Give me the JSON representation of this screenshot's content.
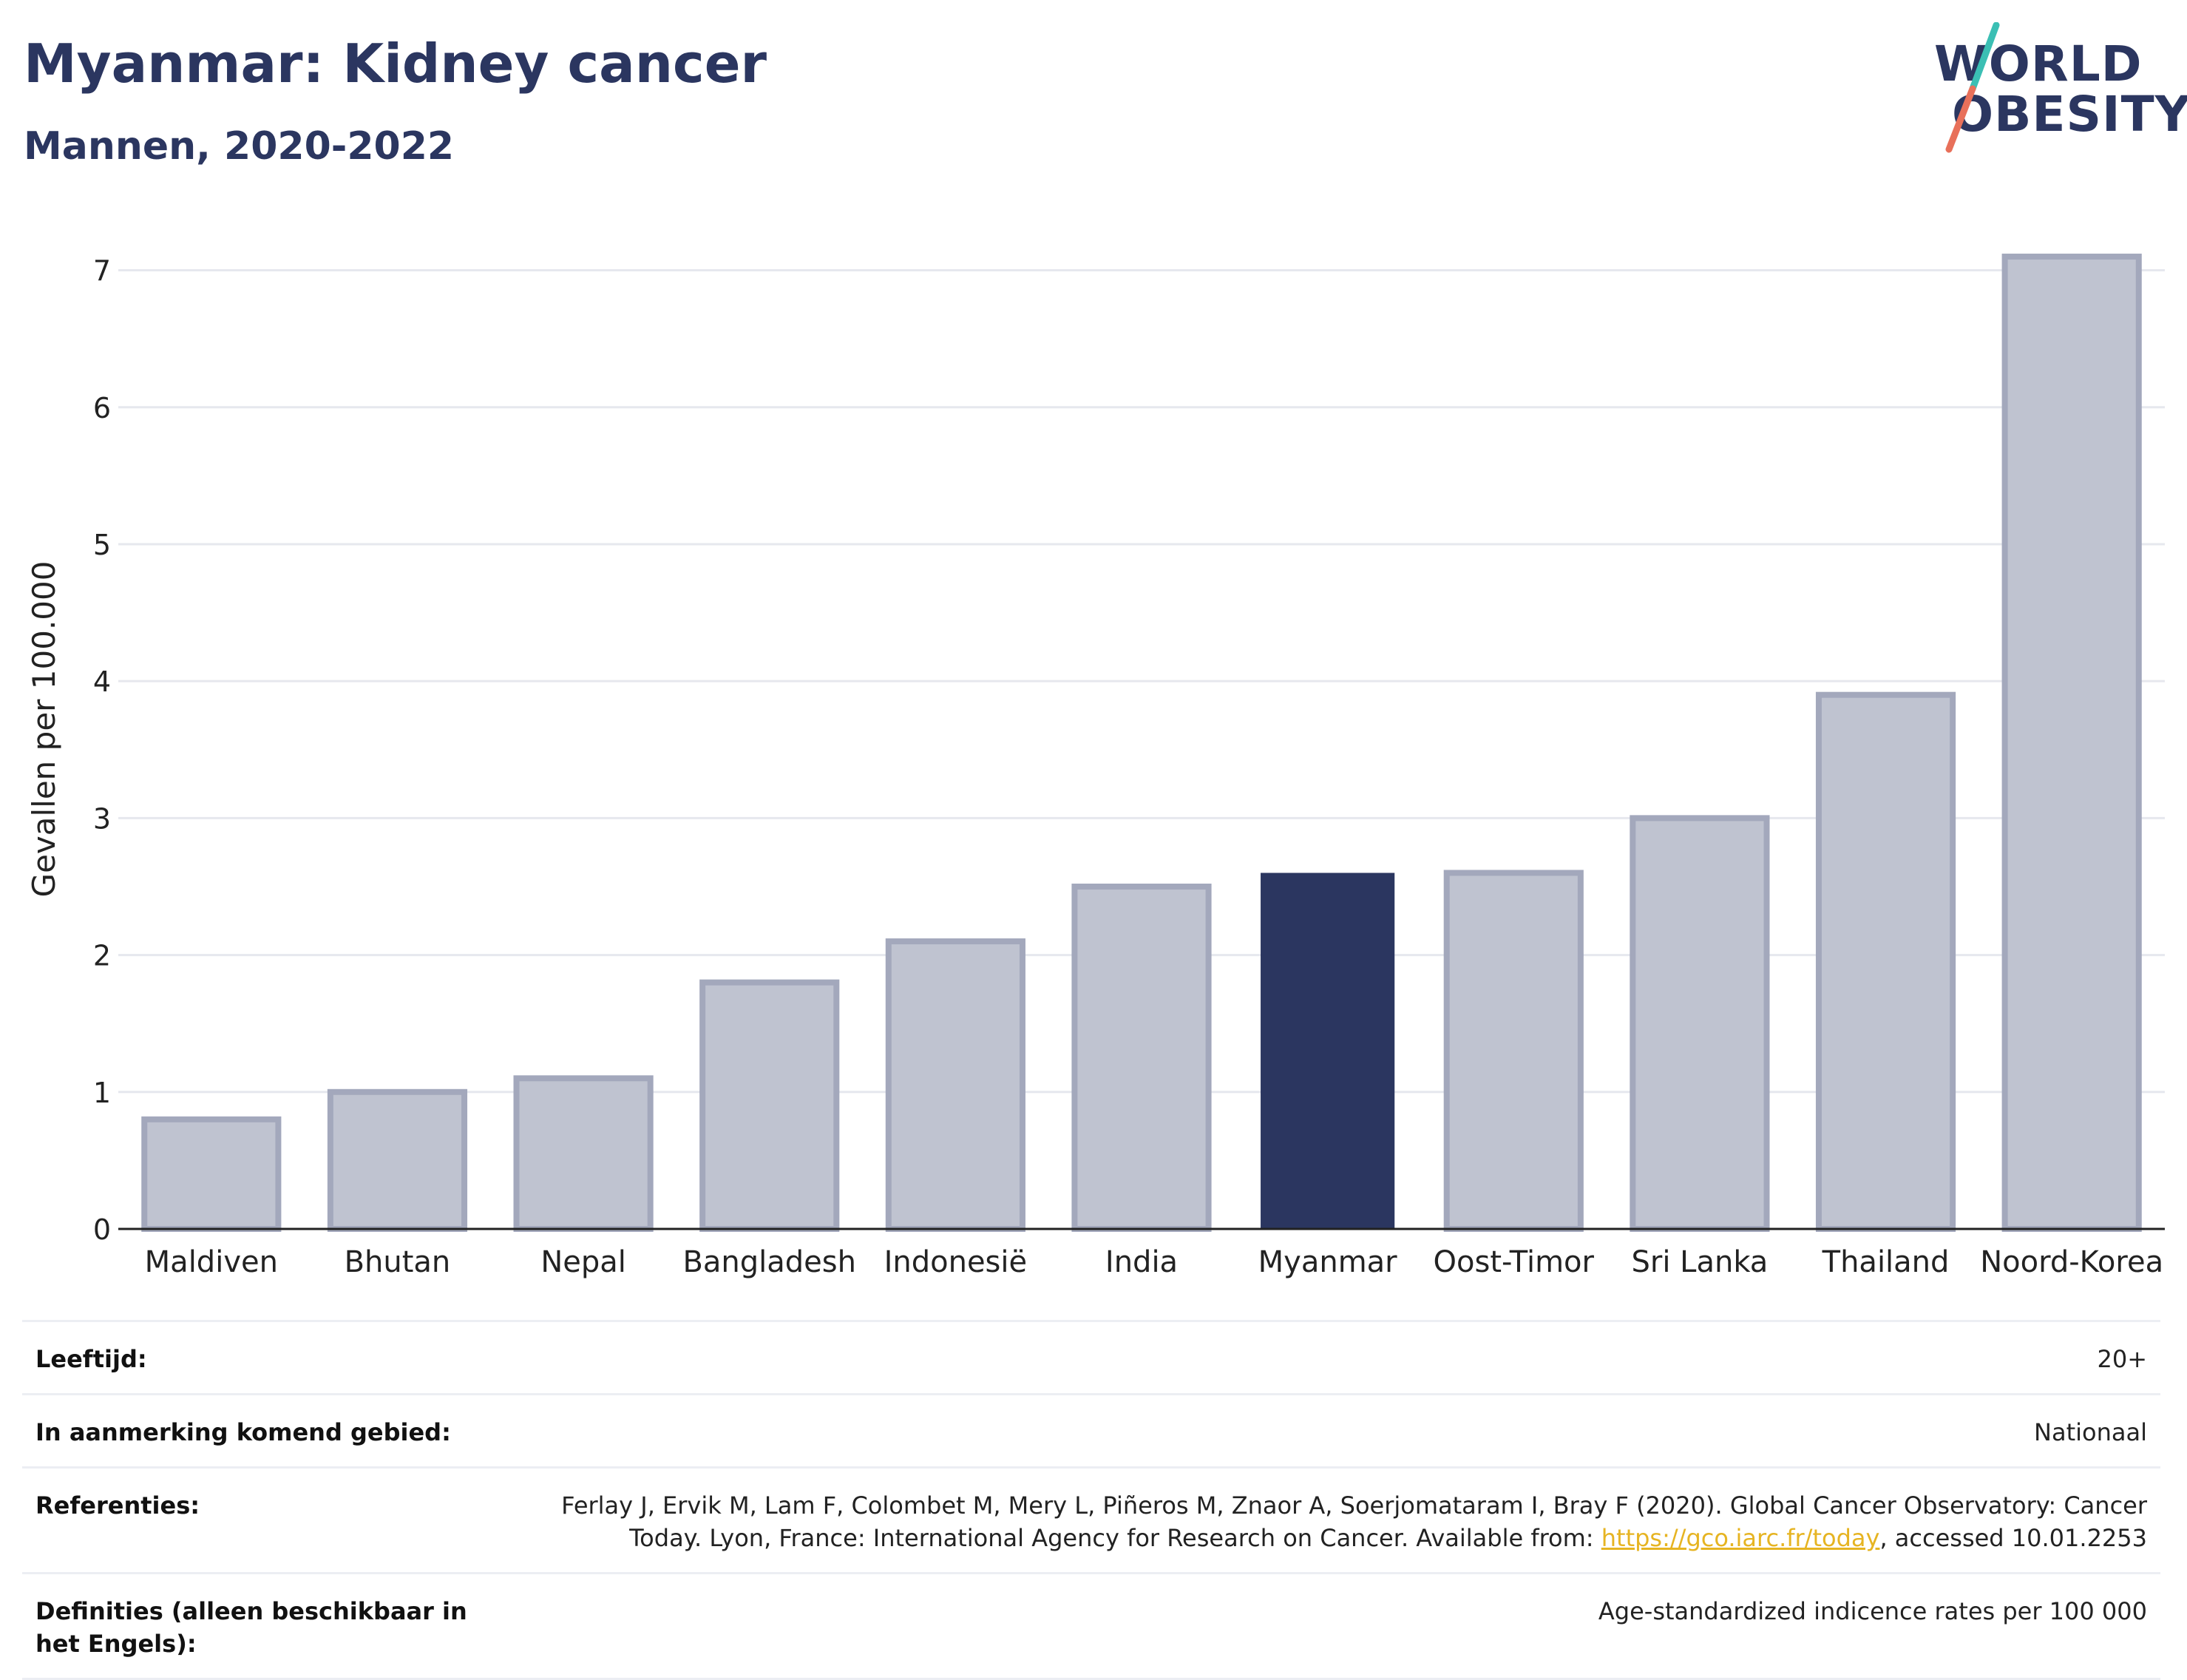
{
  "header": {
    "title": "Myanmar: Kidney cancer",
    "subtitle": "Mannen, 2020-2022"
  },
  "logo": {
    "line1": "WORLD",
    "line2": "OBESITY",
    "colors": {
      "text": "#2b3660",
      "slash_top": "#3bbfb4",
      "slash_bottom": "#e8705a"
    }
  },
  "chart_data": {
    "type": "bar",
    "categories": [
      "Maldiven",
      "Bhutan",
      "Nepal",
      "Bangladesh",
      "Indonesië",
      "India",
      "Myanmar",
      "Oost-Timor",
      "Sri Lanka",
      "Thailand",
      "Noord-Korea"
    ],
    "values": [
      0.8,
      1.0,
      1.1,
      1.8,
      2.1,
      2.5,
      2.6,
      2.6,
      3.0,
      3.9,
      7.1
    ],
    "highlight": "Myanmar",
    "ylabel": "Gevallen per 100.000",
    "yticks": [
      0,
      1,
      2,
      3,
      4,
      5,
      6,
      7
    ],
    "ylim": [
      0,
      7.3
    ],
    "grid": true,
    "colors": {
      "bar": "#bfc3d0",
      "bar_border": "#a3a8bc",
      "highlight": "#2b3660",
      "grid": "#e6e8ee",
      "axis": "#222222"
    }
  },
  "meta": [
    {
      "label": "Leeftijd:",
      "value": "20+"
    },
    {
      "label": "In aanmerking komend gebied:",
      "value": "Nationaal"
    },
    {
      "label": "Referenties:",
      "value_pre": "Ferlay J, Ervik M, Lam F, Colombet M, Mery L, Piñeros M, Znaor A, Soerjomataram I, Bray F (2020). Global Cancer Observatory: Cancer Today. Lyon, France: International Agency for Research on Cancer. Available from: ",
      "link": "https://gco.iarc.fr/today",
      "value_post": ", accessed 10.01.2253"
    },
    {
      "label": "Definities (alleen beschikbaar in het Engels):",
      "value": "Age-standardized indicence rates per 100 000"
    }
  ]
}
